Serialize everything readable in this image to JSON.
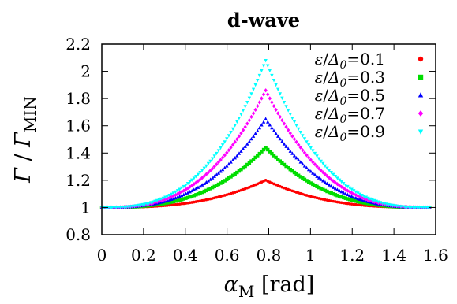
{
  "chart_data": {
    "type": "scatter",
    "title": "d-wave",
    "xlabel": {
      "symbol": "α",
      "sub": "M",
      "rest": " [rad]"
    },
    "ylabel": {
      "a": "Γ",
      "sep": " / ",
      "b": "Γ",
      "sub": "MIN"
    },
    "xlim": [
      0,
      1.6
    ],
    "ylim": [
      0.8,
      2.2
    ],
    "xticks": [
      "0",
      "0.2",
      "0.4",
      "0.6",
      "0.8",
      "1",
      "1.2",
      "1.4",
      "1.6"
    ],
    "yticks": [
      "0.8",
      "1",
      "1.2",
      "1.4",
      "1.6",
      "1.8",
      "2",
      "2.2"
    ],
    "grid": false,
    "legend_position": "top-right",
    "x_range": [
      0,
      1.5708
    ],
    "peak_x": 0.7854,
    "series": [
      {
        "name": "ε/Δ0=0.1",
        "eps": "ε",
        "delta": "Δ",
        "dsub": "0",
        "val": "=0.1",
        "peak": 1.2,
        "color": "#ff0000",
        "marker": "circle"
      },
      {
        "name": "ε/Δ0=0.3",
        "eps": "ε",
        "delta": "Δ",
        "dsub": "0",
        "val": "=0.3",
        "peak": 1.44,
        "color": "#00dd00",
        "marker": "square"
      },
      {
        "name": "ε/Δ0=0.5",
        "eps": "ε",
        "delta": "Δ",
        "dsub": "0",
        "val": "=0.5",
        "peak": 1.65,
        "color": "#0000ff",
        "marker": "triangle"
      },
      {
        "name": "ε/Δ0=0.7",
        "eps": "ε",
        "delta": "Δ",
        "dsub": "0",
        "val": "=0.7",
        "peak": 1.86,
        "color": "#ff00ff",
        "marker": "diamond"
      },
      {
        "name": "ε/Δ0=0.9",
        "eps": "ε",
        "delta": "Δ",
        "dsub": "0",
        "val": "=0.9",
        "peak": 2.08,
        "color": "#00ffff",
        "marker": "triangle-down"
      }
    ]
  }
}
